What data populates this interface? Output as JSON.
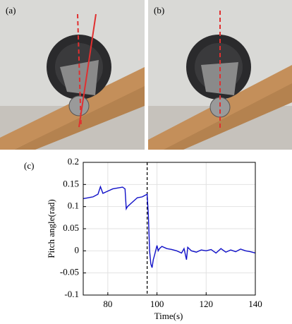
{
  "panels": {
    "a": "(a)",
    "b": "(b)",
    "c": "(c)"
  },
  "chart_data": {
    "type": "line",
    "x_label": "Time(s)",
    "y_label": "Pitch angle(rad)",
    "x": [
      70,
      72,
      74,
      76,
      77,
      78,
      80,
      82,
      84,
      86,
      87,
      87.5,
      88,
      90,
      92,
      94,
      95,
      96,
      96.5,
      97,
      97.5,
      98,
      98.5,
      99,
      100,
      100.5,
      101,
      102,
      104,
      106,
      108,
      110,
      111,
      112,
      112.5,
      114,
      116,
      118,
      120,
      122,
      124,
      126,
      128,
      130,
      132,
      134,
      136,
      138,
      140
    ],
    "series": [
      {
        "color": "#1010c8",
        "values": [
          0.118,
          0.12,
          0.122,
          0.128,
          0.145,
          0.13,
          0.135,
          0.14,
          0.142,
          0.144,
          0.14,
          0.095,
          0.1,
          0.11,
          0.12,
          0.122,
          0.125,
          0.128,
          0.08,
          0.0,
          -0.03,
          -0.038,
          -0.02,
          -0.01,
          0.012,
          0.0,
          0.005,
          0.01,
          0.005,
          0.003,
          0.0,
          -0.005,
          0.005,
          -0.02,
          0.008,
          0.0,
          -0.003,
          0.002,
          0.0,
          0.003,
          -0.005,
          0.005,
          -0.003,
          0.002,
          -0.002,
          0.004,
          0.0,
          -0.002,
          -0.005
        ]
      }
    ],
    "vline": 96,
    "xlim": [
      70,
      140
    ],
    "xticks": [
      80,
      100,
      120,
      140
    ],
    "ylim": [
      -0.1,
      0.2
    ],
    "yticks": [
      0.2,
      0.15,
      0.1,
      0.05,
      0,
      -0.05,
      -0.1
    ],
    "grid": true
  }
}
